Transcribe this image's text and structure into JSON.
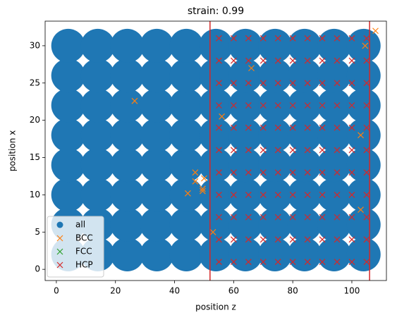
{
  "chart_data": {
    "type": "scatter",
    "title": "strain: 0.99",
    "x_label": "position z",
    "y_label": "position x",
    "xlim": [
      -3.8,
      111.7
    ],
    "ylim": [
      -1.5,
      33.3
    ],
    "xticks": [
      0,
      20,
      40,
      60,
      80,
      100
    ],
    "yticks": [
      0,
      5,
      10,
      15,
      20,
      25,
      30
    ],
    "legend": "lower left",
    "vlines": {
      "color": "#d62728",
      "x": [
        52,
        106
      ]
    },
    "series": [
      {
        "name": "all",
        "color": "#1f77b4",
        "marker": "o",
        "x": [
          4,
          14,
          24,
          34,
          44,
          54,
          64,
          74,
          84,
          94,
          104,
          4,
          14,
          24,
          34,
          44,
          54,
          64,
          74,
          84,
          94,
          104,
          4,
          14,
          24,
          34,
          44,
          54,
          64,
          74,
          84,
          94,
          104,
          4,
          14,
          24,
          34,
          44,
          54,
          64,
          74,
          84,
          94,
          104,
          4,
          14,
          24,
          34,
          44,
          54,
          64,
          74,
          84,
          94,
          104,
          4,
          14,
          24,
          34,
          44,
          54,
          64,
          74,
          84,
          94,
          104,
          4,
          14,
          24,
          34,
          44,
          54,
          64,
          74,
          84,
          94,
          104,
          4,
          14,
          24,
          34,
          44,
          54,
          64,
          74,
          84,
          94,
          104
        ],
        "values": [
          2,
          2,
          2,
          2,
          2,
          2,
          2,
          2,
          2,
          2,
          2,
          6,
          6,
          6,
          6,
          6,
          6,
          6,
          6,
          6,
          6,
          6,
          10,
          10,
          10,
          10,
          10,
          10,
          10,
          10,
          10,
          10,
          10,
          14,
          14,
          14,
          14,
          14,
          14,
          14,
          14,
          14,
          14,
          14,
          18,
          18,
          18,
          18,
          18,
          18,
          18,
          18,
          18,
          18,
          18,
          22,
          22,
          22,
          22,
          22,
          22,
          22,
          22,
          22,
          22,
          22,
          26,
          26,
          26,
          26,
          26,
          26,
          26,
          26,
          26,
          26,
          26,
          30,
          30,
          30,
          30,
          30,
          30,
          30,
          30,
          30,
          30,
          30
        ]
      },
      {
        "name": "BCC",
        "color": "#ff7f0e",
        "marker": "x",
        "x": [
          26.5,
          47,
          47,
          50,
          44.5,
          49.5,
          49.5,
          66,
          103,
          103,
          108,
          104.5,
          53,
          56
        ],
        "values": [
          22.6,
          13,
          11.8,
          12.2,
          10.2,
          10.8,
          10.5,
          27,
          18,
          8,
          32,
          30,
          5,
          20.5
        ]
      },
      {
        "name": "FCC",
        "color": "#2ca02c",
        "marker": "x",
        "x": [],
        "values": []
      },
      {
        "name": "HCP",
        "color": "#d62728",
        "marker": "x",
        "x": [
          55,
          60,
          65,
          70,
          75,
          80,
          85,
          90,
          95,
          100,
          105,
          55,
          60,
          65,
          70,
          75,
          80,
          85,
          90,
          95,
          100,
          105,
          55,
          60,
          65,
          70,
          75,
          80,
          85,
          90,
          95,
          100,
          105,
          55,
          60,
          65,
          70,
          75,
          80,
          85,
          90,
          95,
          100,
          105,
          55,
          60,
          65,
          70,
          75,
          80,
          85,
          90,
          95,
          100,
          105,
          55,
          60,
          65,
          70,
          75,
          80,
          85,
          90,
          95,
          100,
          105,
          55,
          60,
          65,
          70,
          75,
          80,
          85,
          90,
          95,
          100,
          105,
          55,
          60,
          65,
          70,
          75,
          80,
          85,
          90,
          95,
          100,
          105,
          55,
          60,
          65,
          70,
          75,
          80,
          85,
          90,
          95,
          100,
          105,
          55,
          60,
          65,
          70,
          75,
          80,
          85,
          90,
          95,
          100,
          105,
          55,
          60,
          65,
          70,
          75,
          80,
          85,
          90,
          95,
          100,
          105
        ],
        "values": [
          1,
          1,
          1,
          1,
          1,
          1,
          1,
          1,
          1,
          1,
          1,
          4,
          4,
          4,
          4,
          4,
          4,
          4,
          4,
          4,
          4,
          4,
          7,
          7,
          7,
          7,
          7,
          7,
          7,
          7,
          7,
          7,
          7,
          10,
          10,
          10,
          10,
          10,
          10,
          10,
          10,
          10,
          10,
          10,
          13,
          13,
          13,
          13,
          13,
          13,
          13,
          13,
          13,
          13,
          13,
          16,
          16,
          16,
          16,
          16,
          16,
          16,
          16,
          16,
          16,
          16,
          19,
          19,
          19,
          19,
          19,
          19,
          19,
          19,
          19,
          19,
          19,
          22,
          22,
          22,
          22,
          22,
          22,
          22,
          22,
          22,
          22,
          22,
          25,
          25,
          25,
          25,
          25,
          25,
          25,
          25,
          25,
          25,
          25,
          28,
          28,
          28,
          28,
          28,
          28,
          28,
          28,
          28,
          28,
          28,
          31,
          31,
          31,
          31,
          31,
          31,
          31,
          31,
          31,
          31,
          31
        ]
      }
    ]
  }
}
